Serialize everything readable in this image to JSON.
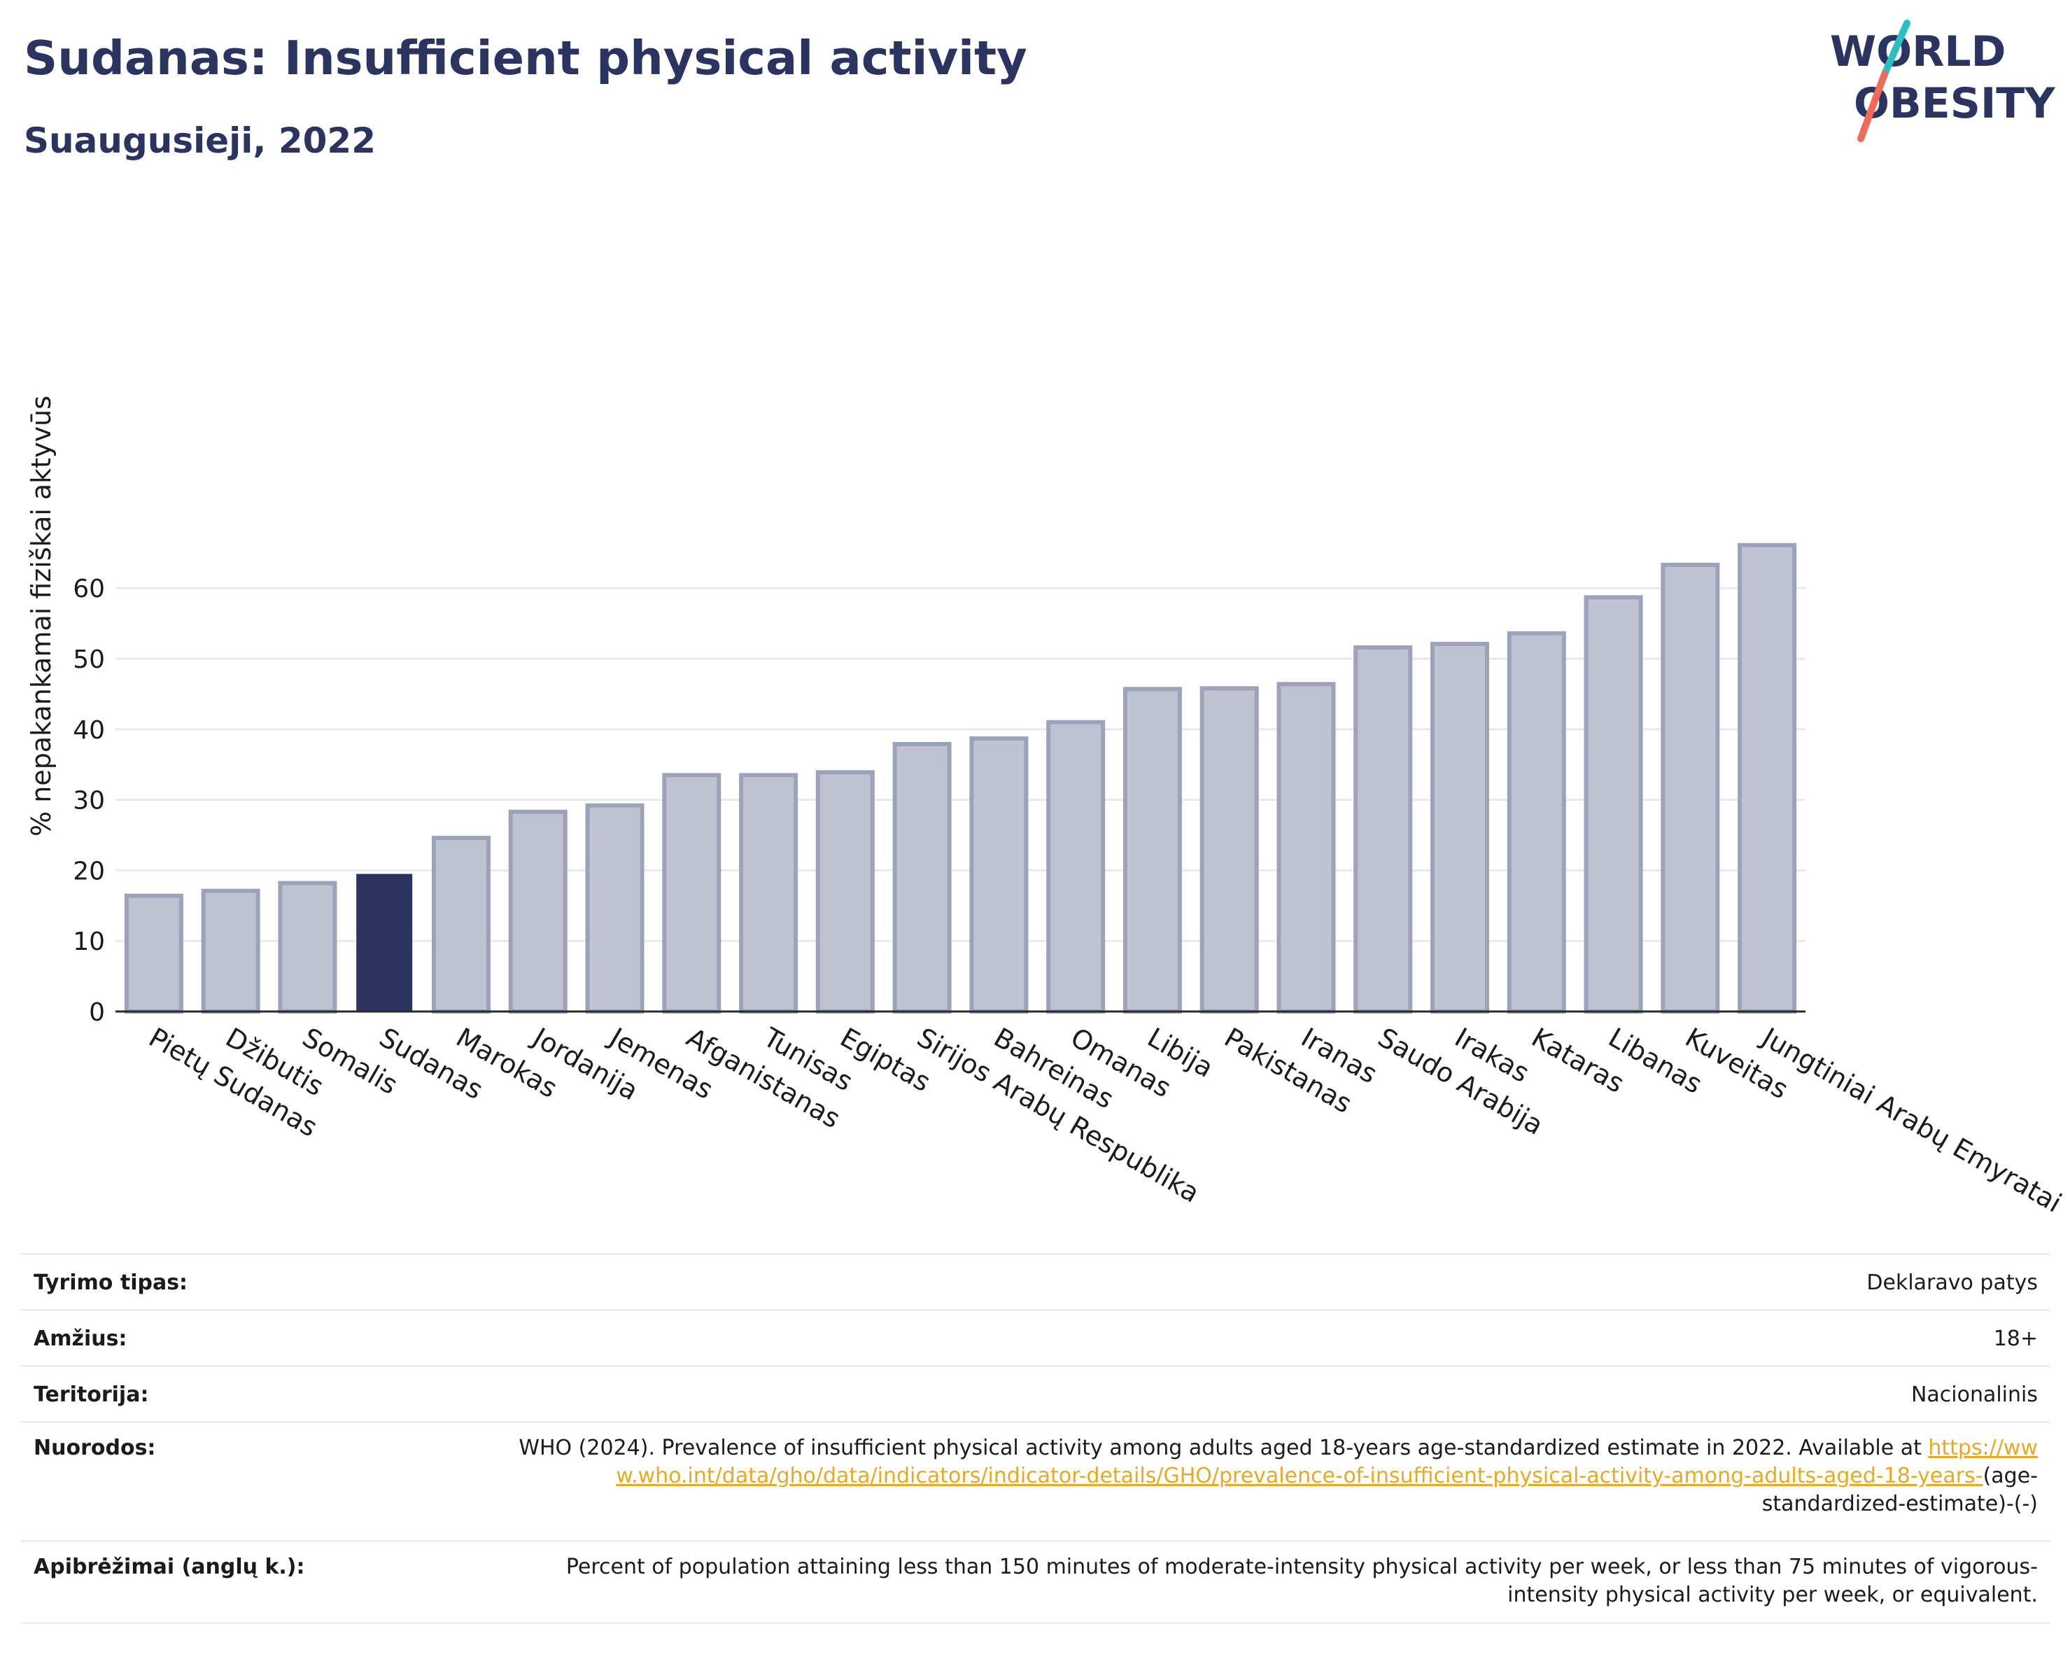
{
  "title": "Sudanas: Insufficient physical activity",
  "subtitle": "Suaugusieji, 2022",
  "logo": {
    "line1": "WORLD",
    "line2": "OBESITY"
  },
  "colors": {
    "highlight": "#2b3461",
    "bar": "#bfc2d0",
    "bar_border": "#9da2bb",
    "grid": "#e8e9f0",
    "link": "#e8a922"
  },
  "chart_data": {
    "type": "bar",
    "ylabel": "% nepakankamai fiziškai aktyvūs",
    "ylim": [
      0,
      67
    ],
    "yticks": [
      0,
      10,
      20,
      30,
      40,
      50,
      60
    ],
    "grid": true,
    "highlight": "Sudanas",
    "categories": [
      "Pietų Sudanas",
      "Džibutis",
      "Somalis",
      "Sudanas",
      "Marokas",
      "Jordanija",
      "Jemenas",
      "Afganistanas",
      "Tunisas",
      "Egiptas",
      "Sirijos Arabų Respublika",
      "Bahreinas",
      "Omanas",
      "Libija",
      "Pakistanas",
      "Iranas",
      "Saudo Arabija",
      "Irakas",
      "Kataras",
      "Libanas",
      "Kuveitas",
      "Jungtiniai Arabų Emyratai"
    ],
    "values": [
      16.4,
      17.1,
      18.2,
      19.4,
      24.6,
      28.3,
      29.2,
      33.5,
      33.5,
      33.9,
      37.9,
      38.7,
      41.0,
      45.7,
      45.8,
      46.4,
      51.6,
      52.1,
      53.6,
      58.7,
      63.3,
      66.1
    ]
  },
  "info": [
    {
      "label": "Tyrimo tipas:",
      "value": "Deklaravo patys"
    },
    {
      "label": "Amžius:",
      "value": "18+"
    },
    {
      "label": "Teritorija:",
      "value": "Nacionalinis"
    },
    {
      "label": "Nuorodos:",
      "value": "WHO (2024). Prevalence of insufficient physical activity among adults aged 18-years age-standardized estimate in 2022. Available at",
      "link": "https://www.who.int/data/gho/data/indicators/indicator-details/GHO/prevalence-of-insufficient-physical-activity-among-adults-aged-18-years-",
      "suffix": "(age-standardized-estimate)-(-)"
    },
    {
      "label": "Apibrėžimai (anglų k.):",
      "value": "Percent of population attaining less than 150 minutes of moderate-intensity physical activity per week, or less than 75 minutes of vigorous-intensity physical activity per week, or equivalent."
    }
  ]
}
